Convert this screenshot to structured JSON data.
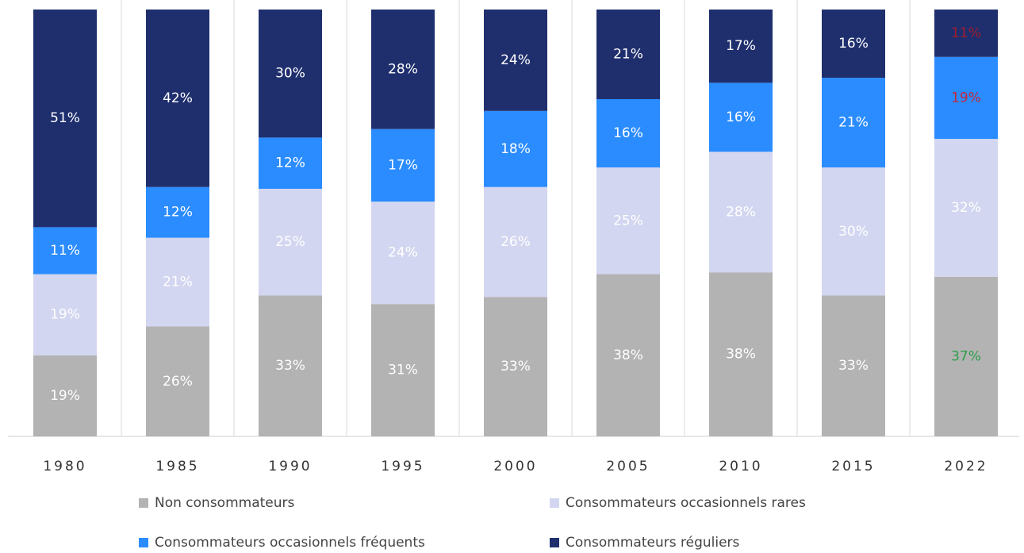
{
  "chart_data": {
    "type": "stacked_bar",
    "categories": [
      "1980",
      "1985",
      "1990",
      "1995",
      "2000",
      "2005",
      "2010",
      "2015",
      "2022"
    ],
    "series": [
      {
        "name": "Non consommateurs",
        "color": "#b3b3b3",
        "values": [
          19,
          26,
          33,
          31,
          33,
          38,
          38,
          33,
          37
        ],
        "value_labels": [
          "19%",
          "26%",
          "33%",
          "31%",
          "33%",
          "38%",
          "38%",
          "33%",
          "37%"
        ],
        "label_colors": [
          "#ffffff",
          "#ffffff",
          "#ffffff",
          "#ffffff",
          "#ffffff",
          "#ffffff",
          "#ffffff",
          "#ffffff",
          "#2e9e4a"
        ]
      },
      {
        "name": "Consommateurs occasionnels rares",
        "color": "#d3d6f0",
        "values": [
          19,
          21,
          25,
          24,
          26,
          25,
          28,
          30,
          32
        ],
        "value_labels": [
          "19%",
          "21%",
          "25%",
          "24%",
          "26%",
          "25%",
          "28%",
          "30%",
          "32%"
        ],
        "label_colors": [
          "#ffffff",
          "#ffffff",
          "#ffffff",
          "#ffffff",
          "#ffffff",
          "#ffffff",
          "#ffffff",
          "#ffffff",
          "#ffffff"
        ]
      },
      {
        "name": "Consommateurs occasionnels fréquents",
        "color": "#2b8cff",
        "values": [
          11,
          12,
          12,
          17,
          18,
          16,
          16,
          21,
          19
        ],
        "value_labels": [
          "11%",
          "12%",
          "12%",
          "17%",
          "18%",
          "16%",
          "16%",
          "21%",
          "19%"
        ],
        "label_colors": [
          "#ffffff",
          "#ffffff",
          "#ffffff",
          "#ffffff",
          "#ffffff",
          "#ffffff",
          "#ffffff",
          "#ffffff",
          "#c0283c"
        ]
      },
      {
        "name": "Consommateurs réguliers",
        "color": "#1f2f6e",
        "values": [
          51,
          42,
          30,
          28,
          24,
          21,
          17,
          16,
          11
        ],
        "value_labels": [
          "51%",
          "42%",
          "30%",
          "28%",
          "24%",
          "21%",
          "17%",
          "16%",
          "11%"
        ],
        "label_colors": [
          "#ffffff",
          "#ffffff",
          "#ffffff",
          "#ffffff",
          "#ffffff",
          "#ffffff",
          "#ffffff",
          "#ffffff",
          "#a01c2c"
        ]
      }
    ]
  }
}
